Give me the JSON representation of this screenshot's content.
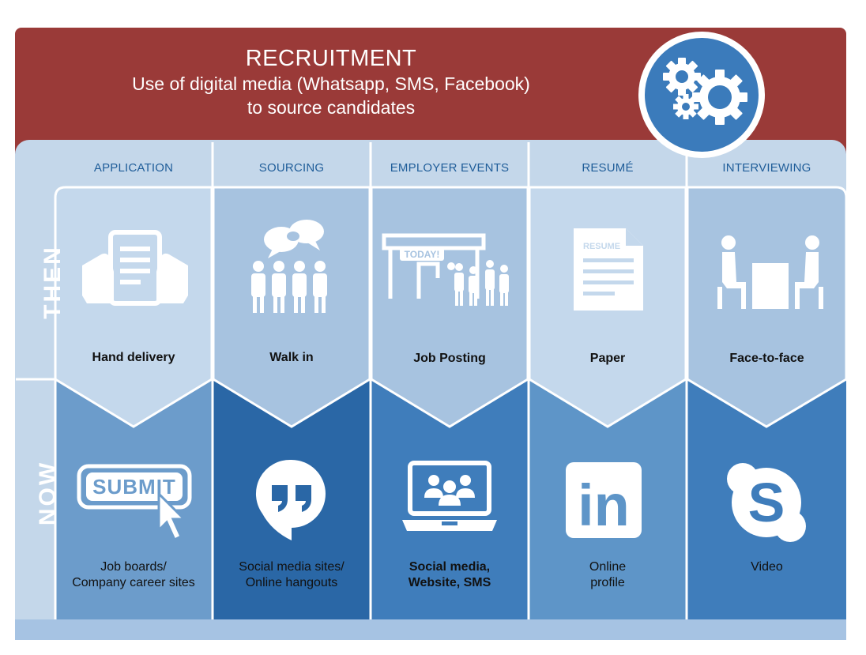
{
  "banner": {
    "title": "RECRUITMENT",
    "subtitle_line1": "Use of digital media (Whatsapp, SMS, Facebook)",
    "subtitle_line2": "to source candidates"
  },
  "rows": {
    "then": "THEN",
    "now": "NOW"
  },
  "columns": [
    {
      "header": "APPLICATION",
      "then": "Hand delivery",
      "now_line1": "Job boards/",
      "now_line2": "Company career sites",
      "then_icon": "hands-holding-document-icon",
      "now_icon": "submit-button-cursor-icon"
    },
    {
      "header": "SOURCING",
      "then": "Walk in",
      "now_line1": "Social media sites/",
      "now_line2": "Online hangouts",
      "then_icon": "crowd-speech-bubbles-icon",
      "now_icon": "hangouts-quote-icon"
    },
    {
      "header": "EMPLOYER EVENTS",
      "then": "Job Posting",
      "now_line1": "Social media,",
      "now_line2": "Website, SMS",
      "then_icon": "job-posting-board-people-icon",
      "now_icon": "laptop-video-conference-icon"
    },
    {
      "header": "RESUMÉ",
      "then": "Paper",
      "now_line1": "Online",
      "now_line2": "profile",
      "then_icon": "resume-document-icon",
      "now_icon": "linkedin-icon"
    },
    {
      "header": "INTERVIEWING",
      "then": "Face-to-face",
      "now_line1": "Video",
      "now_line2": "",
      "then_icon": "two-people-table-icon",
      "now_icon": "skype-icon"
    }
  ],
  "badge_text": "TODAY!",
  "resume_text": "RESUME",
  "submit_text": "SUBMIT",
  "linkedin_text": "in",
  "skype_text": "S",
  "colors": {
    "banner": "#9a3a38",
    "panel": "#c4d7ea",
    "header_text": "#1f5d99",
    "then_column_a": "#c4d8ec",
    "then_column_b": "#a7c3e0",
    "now_light": "#5e95c8",
    "now_dark": "#2a67a6",
    "now_mid": "#3f7dbb"
  }
}
